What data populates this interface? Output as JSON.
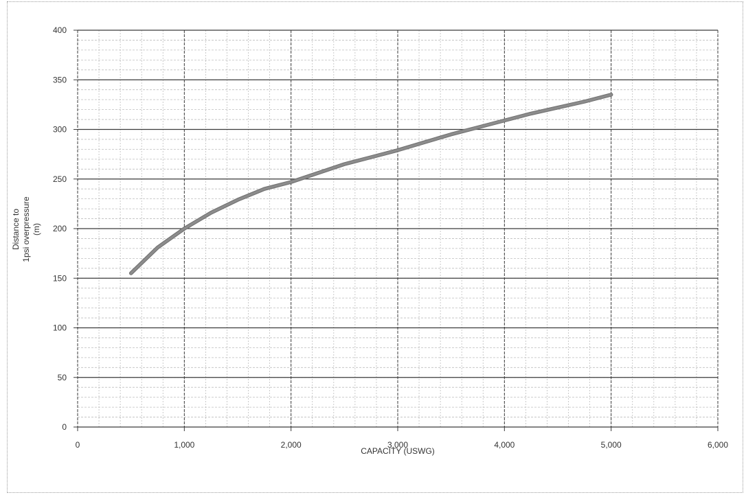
{
  "chart_data": {
    "type": "line",
    "title": "",
    "xlabel": "CAPACITY (USWG)",
    "ylabel_lines": [
      "Distance to",
      "1psi overpressure",
      "(m)"
    ],
    "xlim": [
      0,
      6000
    ],
    "ylim": [
      0,
      400
    ],
    "x_major_ticks": [
      0,
      1000,
      2000,
      3000,
      4000,
      5000,
      6000
    ],
    "x_tick_labels": [
      "0",
      "1,000",
      "2,000",
      "3,000",
      "4,000",
      "5,000",
      "6,000"
    ],
    "y_major_ticks": [
      0,
      50,
      100,
      150,
      200,
      250,
      300,
      350,
      400
    ],
    "y_tick_labels": [
      "0",
      "50",
      "100",
      "150",
      "200",
      "250",
      "300",
      "350",
      "400"
    ],
    "x_minor_step": 200,
    "y_minor_step": 10,
    "grid": true,
    "legend": "none",
    "series": [
      {
        "x": [
          500,
          750,
          1000,
          1250,
          1500,
          1750,
          2000,
          2250,
          2500,
          2750,
          3000,
          3250,
          3500,
          3750,
          4000,
          4250,
          4500,
          4750,
          5000
        ],
        "y": [
          155,
          181,
          200,
          216,
          229,
          240,
          247,
          256,
          265,
          272,
          279,
          287,
          295,
          302,
          309,
          316,
          322,
          328,
          335
        ],
        "color": "#8c8c8c"
      }
    ],
    "colors": {
      "major_grid": "#3a3a3a",
      "minor_grid": "#bdbdbd",
      "text": "#333333"
    }
  }
}
